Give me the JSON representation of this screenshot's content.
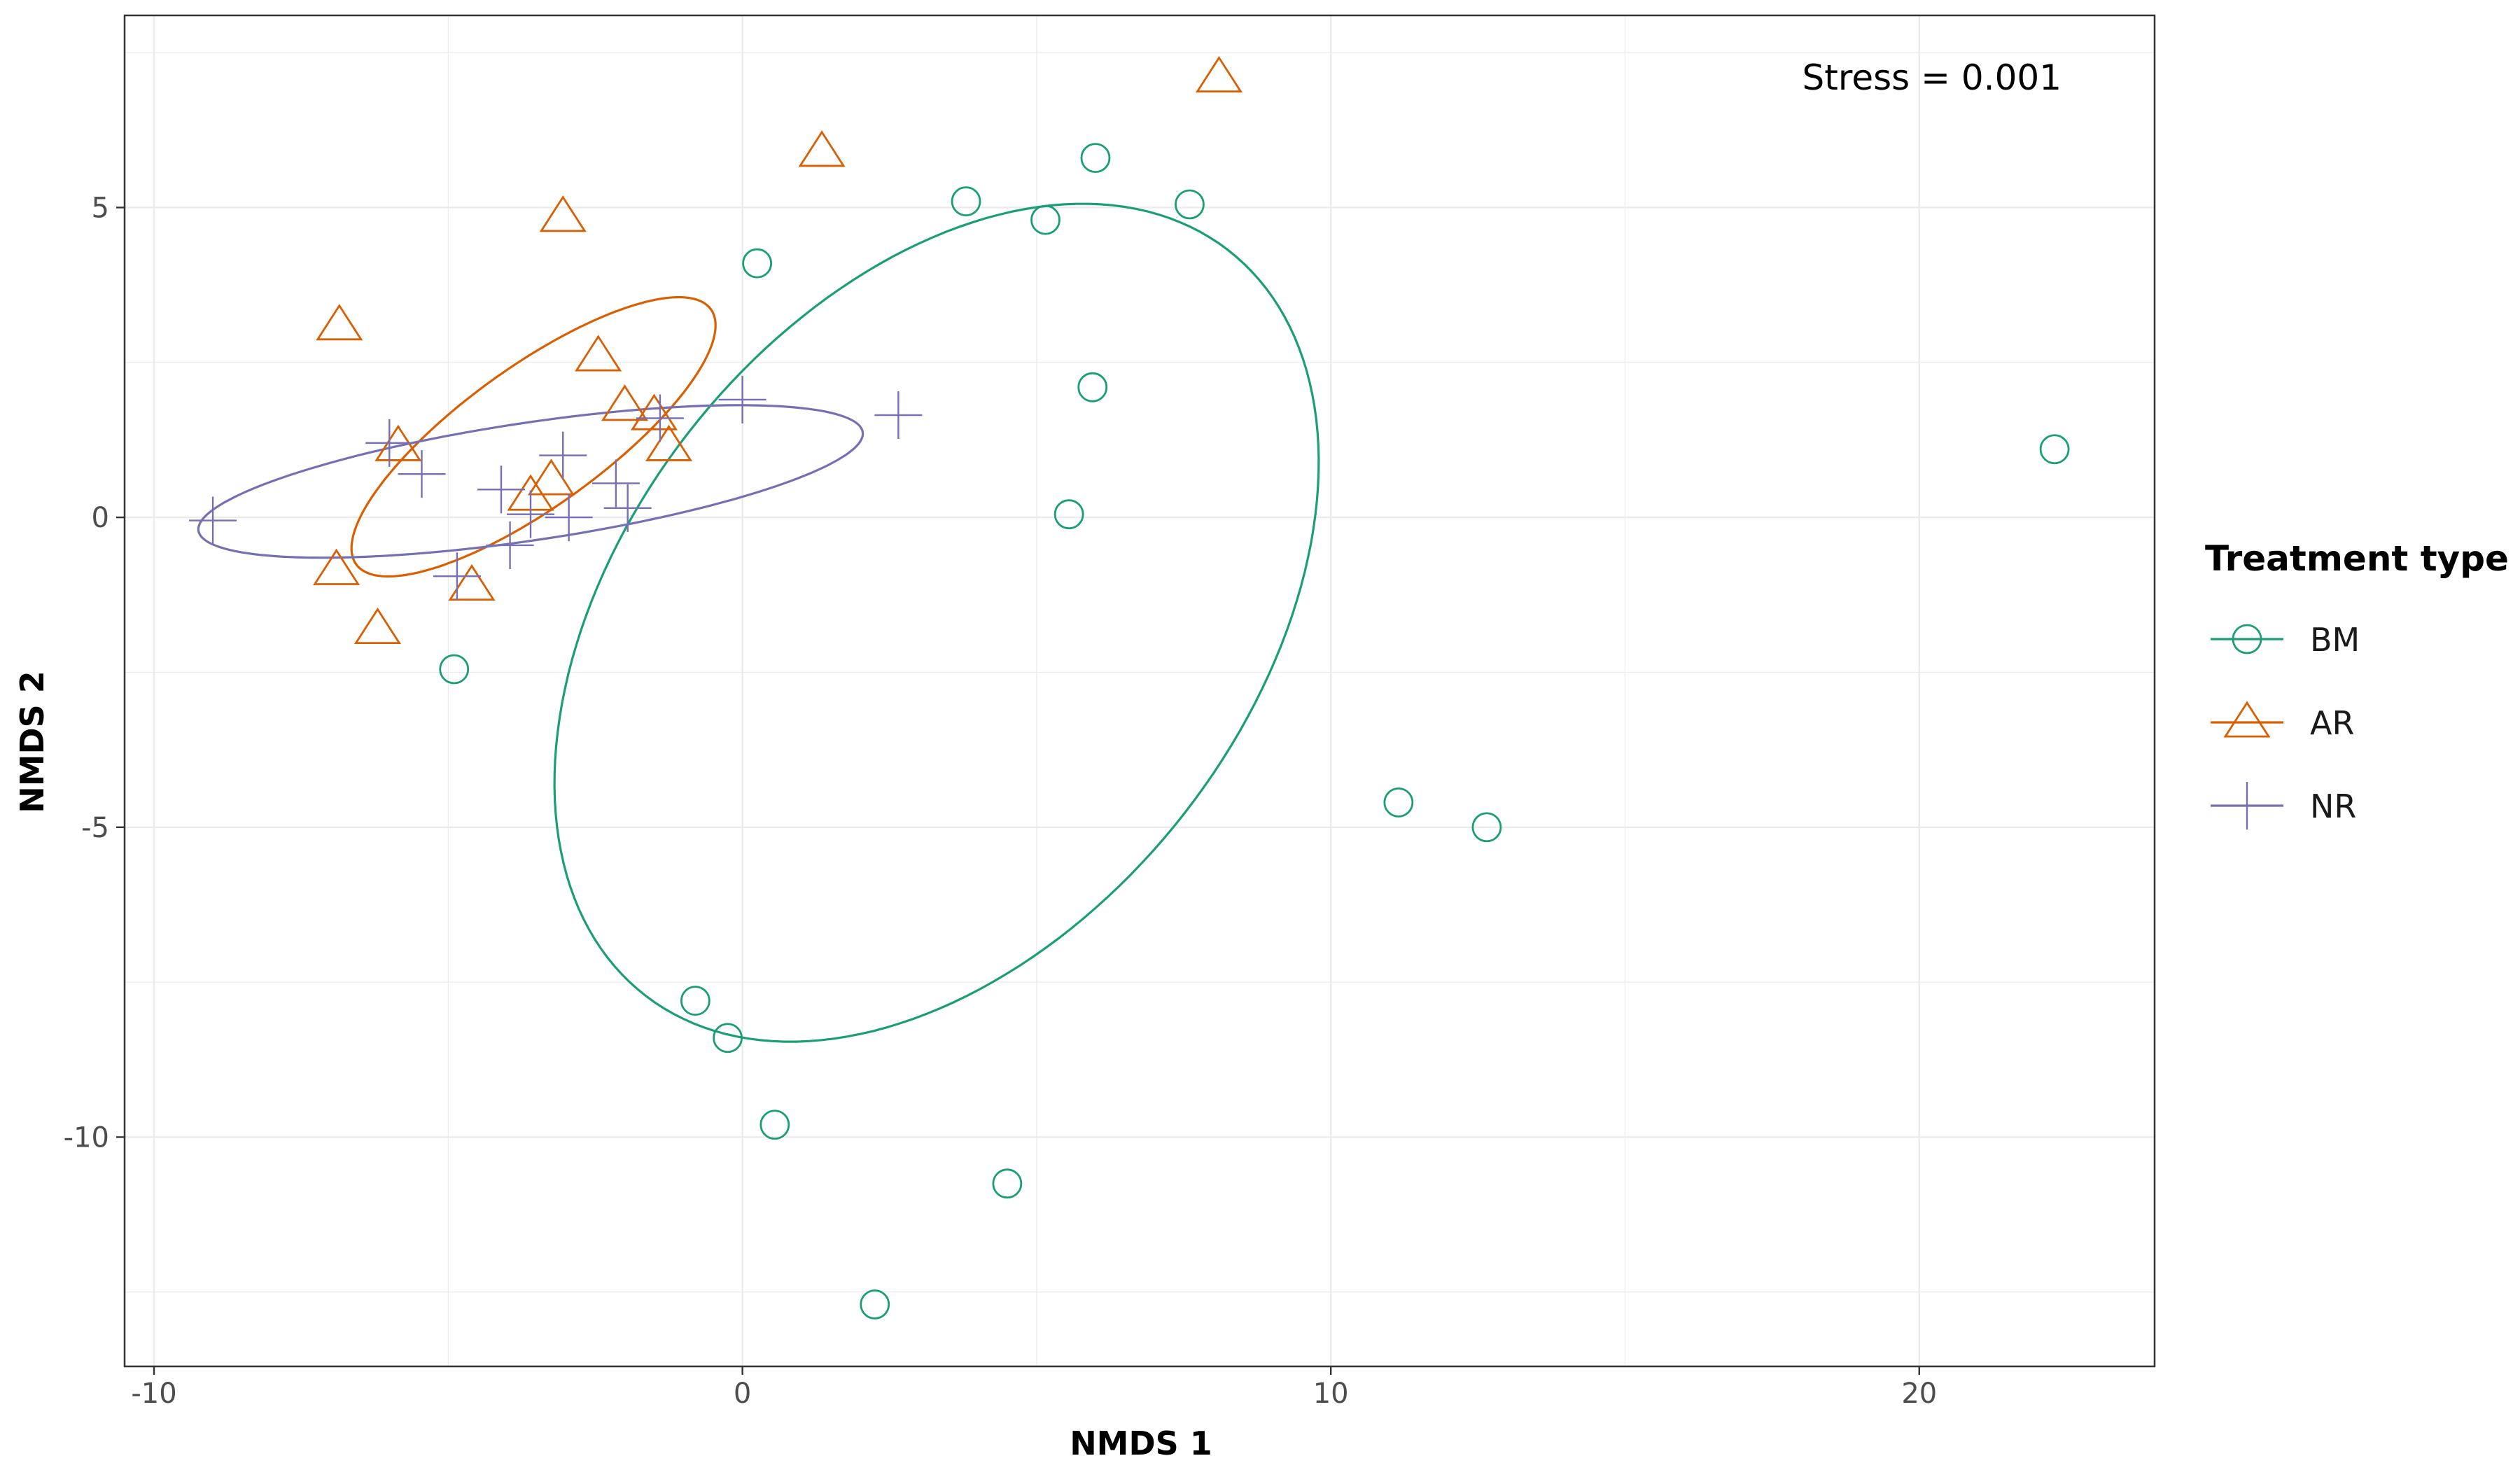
{
  "chart_data": {
    "type": "scatter",
    "title": "",
    "xlabel": "NMDS 1",
    "ylabel": "NMDS 2",
    "xlim": [
      -10.5,
      24
    ],
    "ylim": [
      -13.7,
      8.1
    ],
    "x_ticks": [
      -10,
      0,
      10,
      20
    ],
    "x_tick_labels": [
      "-10",
      "0",
      "10",
      "20"
    ],
    "y_ticks": [
      -10,
      -5,
      0,
      5
    ],
    "y_tick_labels": [
      "-10",
      "-5",
      "0",
      "5"
    ],
    "grid": true,
    "annotation": "Stress = 0.001",
    "legend": {
      "title": "Treatment type",
      "position": "right",
      "entries": [
        "BM",
        "AR",
        "NR"
      ]
    },
    "series": [
      {
        "name": "BM",
        "color": "#1b9e77",
        "marker": "circle",
        "points": [
          [
            0.25,
            4.1
          ],
          [
            3.8,
            5.1
          ],
          [
            5.15,
            4.8
          ],
          [
            6.0,
            5.8
          ],
          [
            7.6,
            5.05
          ],
          [
            5.95,
            2.1
          ],
          [
            5.55,
            0.05
          ],
          [
            22.3,
            1.1
          ],
          [
            11.15,
            -4.6
          ],
          [
            12.65,
            -5.0
          ],
          [
            -4.9,
            -2.45
          ],
          [
            -0.8,
            -7.8
          ],
          [
            -0.25,
            -8.4
          ],
          [
            0.55,
            -9.8
          ],
          [
            4.5,
            -10.75
          ],
          [
            2.25,
            -12.7
          ]
        ],
        "ellipse": {
          "cx": 3.3,
          "cy": -1.7,
          "rx": 7.8,
          "ry": 5.2,
          "angle_deg": 48
        }
      },
      {
        "name": "AR",
        "color": "#d95f02",
        "marker": "triangle",
        "points": [
          [
            8.1,
            7.1
          ],
          [
            1.35,
            5.9
          ],
          [
            -3.05,
            4.85
          ],
          [
            -6.85,
            3.1
          ],
          [
            -2.45,
            2.6
          ],
          [
            -2.0,
            1.8
          ],
          [
            -1.5,
            1.65
          ],
          [
            -1.25,
            1.15
          ],
          [
            -5.85,
            1.15
          ],
          [
            -3.25,
            0.6
          ],
          [
            -3.6,
            0.35
          ],
          [
            -6.9,
            -0.85
          ],
          [
            -4.6,
            -1.1
          ],
          [
            -6.2,
            -1.8
          ]
        ],
        "ellipse": {
          "cx": -3.55,
          "cy": 1.3,
          "rx": 3.65,
          "ry": 1.15,
          "angle_deg": 34
        }
      },
      {
        "name": "NR",
        "color": "#7570b3",
        "marker": "plus",
        "points": [
          [
            -9.0,
            -0.05
          ],
          [
            -6.0,
            1.2
          ],
          [
            -5.45,
            0.7
          ],
          [
            -4.85,
            -0.95
          ],
          [
            -4.1,
            0.45
          ],
          [
            -3.95,
            -0.45
          ],
          [
            -3.6,
            0.05
          ],
          [
            -3.05,
            1.0
          ],
          [
            -2.95,
            0.0
          ],
          [
            -2.15,
            0.55
          ],
          [
            -1.95,
            0.15
          ],
          [
            -1.4,
            1.6
          ],
          [
            0.0,
            1.9
          ],
          [
            2.65,
            1.65
          ]
        ],
        "ellipse": {
          "cx": -3.6,
          "cy": 0.58,
          "rx": 5.7,
          "ry": 0.95,
          "angle_deg": 8
        }
      }
    ]
  }
}
